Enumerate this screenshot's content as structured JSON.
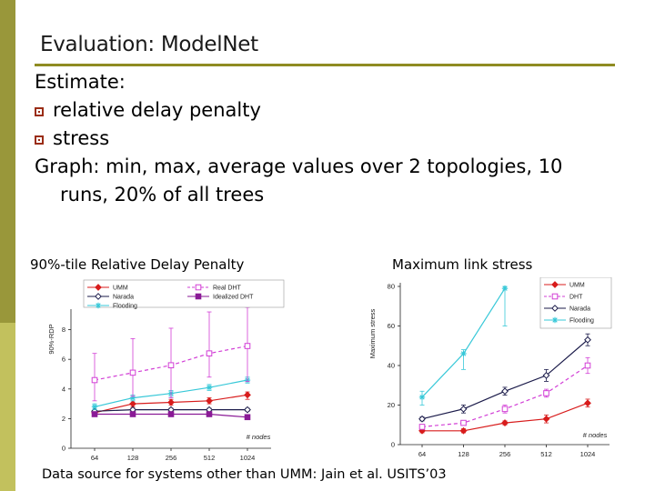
{
  "slide": {
    "title": "Evaluation: ModelNet",
    "lines": [
      {
        "text": "Estimate:",
        "bullet": false
      },
      {
        "text": "relative delay penalty",
        "bullet": true
      },
      {
        "text": "stress",
        "bullet": true
      },
      {
        "text": "Graph: min, max, average values over 2 topologies, 10",
        "bullet": false
      },
      {
        "text": "runs, 20% of all trees",
        "bullet": false
      }
    ],
    "footer": "Data source for systems other than UMM: Jain et al. USITS’03"
  },
  "colors": {
    "side_bar_dark": "#99973a",
    "side_bar_light": "#c2c15d",
    "title_rule": "#8f8c22",
    "bullet": "#9a2d16"
  },
  "chart_data": [
    {
      "type": "line",
      "caption": "90%-tile Relative Delay Penalty",
      "ylabel": "90%-RDP",
      "xlabel": "# nodes",
      "categories": [
        "64",
        "128",
        "256",
        "512",
        "1024"
      ],
      "ylim": [
        0,
        10
      ],
      "yticks": [
        "0",
        "2",
        "4",
        "6",
        "8"
      ],
      "grid": false,
      "legend": "top",
      "series": [
        {
          "name": "UMM",
          "color": "#d81c1c",
          "marker": "diamond-filled",
          "dash": false,
          "values": [
            2.4,
            3.0,
            3.1,
            3.2,
            3.6
          ],
          "min": [
            2.3,
            2.8,
            2.9,
            3.0,
            3.3
          ],
          "max": [
            2.6,
            3.2,
            3.3,
            3.4,
            3.8
          ]
        },
        {
          "name": "Narada",
          "color": "#1b1b4a",
          "marker": "diamond-open",
          "dash": false,
          "values": [
            2.5,
            2.6,
            2.6,
            2.6,
            2.6
          ],
          "min": [
            2.4,
            2.5,
            2.5,
            2.5,
            2.5
          ],
          "max": [
            2.6,
            2.7,
            2.7,
            2.7,
            2.7
          ]
        },
        {
          "name": "Flooding",
          "color": "#37c8d8",
          "marker": "star",
          "dash": false,
          "values": [
            2.8,
            3.4,
            3.7,
            4.1,
            4.6
          ],
          "min": [
            2.6,
            3.2,
            3.5,
            3.9,
            4.4
          ],
          "max": [
            3.0,
            3.6,
            3.9,
            4.3,
            4.8
          ]
        },
        {
          "name": "Real DHT",
          "color": "#d23fd6",
          "marker": "square-open",
          "dash": true,
          "values": [
            4.6,
            5.1,
            5.6,
            6.4,
            6.9
          ],
          "min": [
            3.2,
            3.5,
            3.4,
            4.8,
            4.5
          ],
          "max": [
            6.4,
            7.4,
            8.1,
            9.2,
            9.5
          ]
        },
        {
          "name": "Idealized DHT",
          "color": "#8a1a96",
          "marker": "square-filled",
          "dash": false,
          "values": [
            2.3,
            2.3,
            2.3,
            2.3,
            2.1
          ],
          "min": [
            2.2,
            2.2,
            2.2,
            2.2,
            2.0
          ],
          "max": [
            2.4,
            2.4,
            2.4,
            2.4,
            2.2
          ]
        }
      ]
    },
    {
      "type": "line",
      "caption": "Maximum link stress",
      "ylabel": "Maximum stress",
      "xlabel": "# nodes",
      "categories": [
        "64",
        "128",
        "256",
        "512",
        "1024"
      ],
      "ylim": [
        0,
        80
      ],
      "yticks": [
        "0",
        "20",
        "40",
        "60",
        "80"
      ],
      "grid": false,
      "legend": "top-right",
      "series": [
        {
          "name": "UMM",
          "color": "#d81c1c",
          "marker": "diamond-filled",
          "dash": false,
          "values": [
            7,
            7,
            11,
            13,
            21
          ],
          "min": [
            6,
            6,
            10,
            11,
            19
          ],
          "max": [
            8,
            8,
            12,
            15,
            23
          ]
        },
        {
          "name": "DHT",
          "color": "#d23fd6",
          "marker": "square-open",
          "dash": true,
          "values": [
            9,
            11,
            18,
            26,
            40
          ],
          "min": [
            8,
            10,
            16,
            24,
            36
          ],
          "max": [
            10,
            12,
            20,
            28,
            44
          ]
        },
        {
          "name": "Narada",
          "color": "#1b1b4a",
          "marker": "diamond-open",
          "dash": false,
          "values": [
            13,
            18,
            27,
            35,
            53
          ],
          "min": [
            12,
            16,
            25,
            32,
            50
          ],
          "max": [
            14,
            20,
            29,
            38,
            56
          ]
        },
        {
          "name": "Flooding",
          "color": "#37c8d8",
          "marker": "star",
          "dash": false,
          "values": [
            24,
            46,
            79,
            null,
            null
          ],
          "min": [
            20,
            38,
            60,
            null,
            null
          ],
          "max": [
            27,
            48,
            80,
            null,
            null
          ]
        }
      ]
    }
  ]
}
